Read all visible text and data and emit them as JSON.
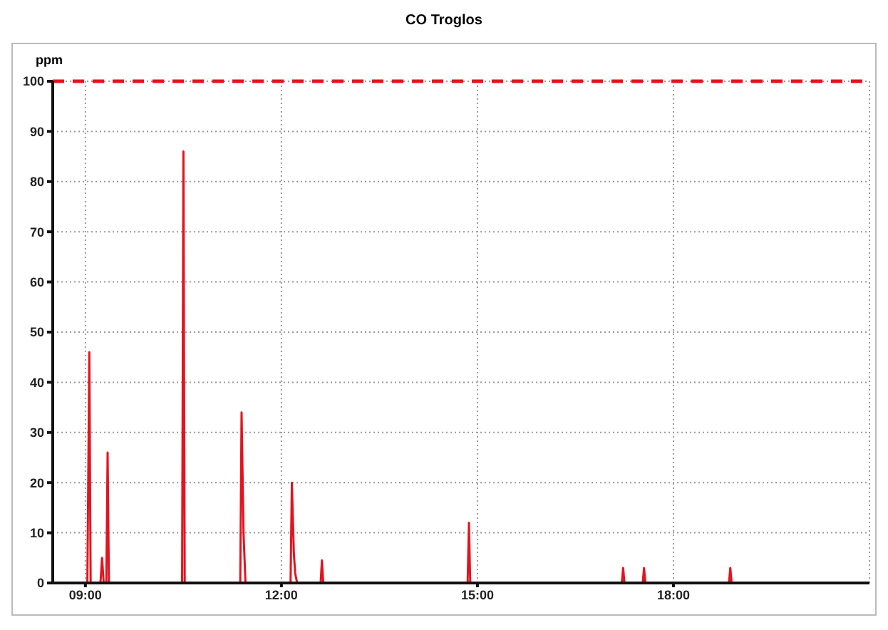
{
  "chart_data": {
    "type": "line",
    "title": "CO Troglos",
    "ylabel": "ppm",
    "x": [
      8.5,
      9.03,
      9.06,
      9.08,
      9.23,
      9.255,
      9.28,
      9.32,
      9.34,
      9.36,
      10.48,
      10.5,
      10.52,
      11.37,
      11.39,
      11.42,
      11.45,
      12.14,
      12.16,
      12.19,
      12.21,
      12.24,
      12.6,
      12.62,
      12.64,
      14.85,
      14.87,
      14.89,
      17.21,
      17.23,
      17.25,
      17.53,
      17.55,
      17.57,
      18.85,
      18.87,
      18.89,
      21
    ],
    "values": [
      0,
      0,
      46,
      0,
      0,
      5,
      0,
      0,
      26,
      0,
      0,
      86,
      0,
      0,
      34,
      10,
      0,
      0,
      20,
      6,
      2,
      0,
      0,
      4.5,
      0,
      0,
      12,
      0,
      0,
      3,
      0,
      0,
      3,
      0,
      0,
      3,
      0,
      0
    ],
    "color": "#e3141e",
    "line_style": "solid",
    "marker": "none",
    "xlim": [
      8.5,
      21
    ],
    "xticks": [
      {
        "value": 9,
        "label": "09:00"
      },
      {
        "value": 12,
        "label": "12:00"
      },
      {
        "value": 15,
        "label": "15:00"
      },
      {
        "value": 18,
        "label": "18:00"
      }
    ],
    "ylim": [
      0,
      100
    ],
    "yticks": [
      0,
      10,
      20,
      30,
      40,
      50,
      60,
      70,
      80,
      90,
      100
    ],
    "grid": true,
    "ref_lines": [
      {
        "axis": "y",
        "value": 100,
        "color": "#e3141e",
        "line_style": "dashed"
      }
    ]
  }
}
